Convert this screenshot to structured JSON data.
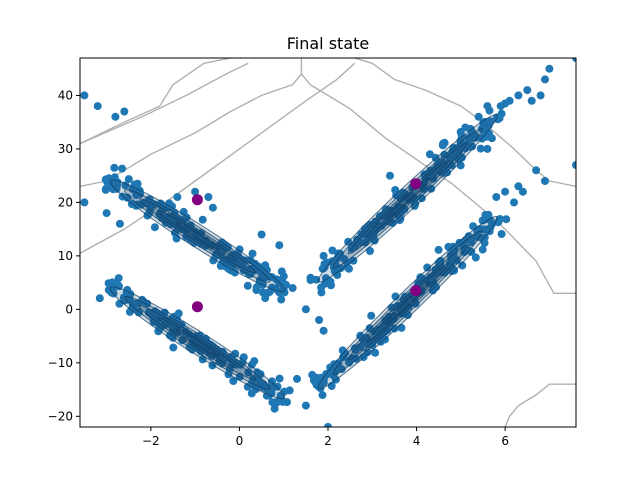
{
  "chart_data": {
    "type": "scatter",
    "title": "Final state",
    "xlabel": "",
    "ylabel": "",
    "xlim": [
      -3.6,
      7.6
    ],
    "ylim": [
      -22,
      47
    ],
    "xticks": [
      -2,
      0,
      2,
      4,
      6
    ],
    "yticks": [
      -20,
      -10,
      0,
      10,
      20,
      30,
      40
    ],
    "grid": false,
    "legend": "none",
    "colors": {
      "points": "#1f77b4",
      "density": "#1a4f7a",
      "centers": "#800080",
      "boundaries": "#b0b0b0"
    },
    "arms": [
      {
        "from": [
          -3.0,
          24.5
        ],
        "to": [
          1.1,
          3.0
        ]
      },
      {
        "from": [
          -3.0,
          4.5
        ],
        "to": [
          1.1,
          -17.0
        ]
      },
      {
        "from": [
          1.7,
          4.5
        ],
        "to": [
          5.9,
          37.0
        ]
      },
      {
        "from": [
          1.7,
          -15.5
        ],
        "to": [
          5.9,
          18.0
        ]
      }
    ],
    "outer_points": [
      [
        -3.5,
        40
      ],
      [
        -3.5,
        20
      ],
      [
        -3.2,
        38
      ],
      [
        -2.8,
        36
      ],
      [
        -2.6,
        37
      ],
      [
        -3.0,
        18
      ],
      [
        -2.7,
        16
      ],
      [
        1.2,
        4
      ],
      [
        1.5,
        0
      ],
      [
        1.8,
        -2
      ],
      [
        1.9,
        -4
      ],
      [
        1.3,
        -13
      ],
      [
        1.5,
        -18
      ],
      [
        2.0,
        -22
      ],
      [
        5.6,
        38
      ],
      [
        5.9,
        38
      ],
      [
        6.0,
        38.5
      ],
      [
        6.1,
        39
      ],
      [
        6.3,
        40
      ],
      [
        6.5,
        41
      ],
      [
        6.9,
        43
      ],
      [
        7.0,
        45
      ],
      [
        7.6,
        47
      ],
      [
        6.8,
        40
      ],
      [
        6.6,
        39
      ],
      [
        5.7,
        32
      ],
      [
        5.6,
        30
      ],
      [
        5.8,
        21
      ],
      [
        6.0,
        22
      ],
      [
        6.3,
        23
      ],
      [
        6.7,
        26
      ],
      [
        6.9,
        24
      ],
      [
        7.6,
        27
      ],
      [
        6.2,
        20
      ],
      [
        6.4,
        22
      ],
      [
        4.3,
        29
      ],
      [
        4.6,
        31
      ],
      [
        5.1,
        34
      ],
      [
        5.4,
        36
      ],
      [
        3.4,
        25
      ],
      [
        -1.0,
        22
      ],
      [
        -0.7,
        21
      ],
      [
        -0.6,
        19
      ],
      [
        -1.4,
        21
      ],
      [
        0.5,
        14
      ],
      [
        0.9,
        12
      ],
      [
        1.9,
        10
      ],
      [
        2.1,
        11
      ]
    ],
    "centers": [
      {
        "x": -0.95,
        "y": 20.5
      },
      {
        "x": -0.95,
        "y": 0.5
      },
      {
        "x": 3.98,
        "y": 23.5
      },
      {
        "x": 3.98,
        "y": 3.5
      }
    ],
    "boundaries": [
      [
        [
          -3.6,
          31
        ],
        [
          -2.2,
          36
        ],
        [
          -1.2,
          40
        ],
        [
          -0.3,
          44
        ],
        [
          0.2,
          46
        ]
      ],
      [
        [
          -3.6,
          10.5
        ],
        [
          -2.6,
          15
        ],
        [
          -1.5,
          21
        ],
        [
          -0.5,
          27
        ],
        [
          0.5,
          33
        ],
        [
          1.5,
          39
        ],
        [
          2.2,
          43
        ],
        [
          2.6,
          46
        ]
      ],
      [
        [
          -3.6,
          31
        ],
        [
          -2.6,
          35
        ],
        [
          -1.8,
          38
        ],
        [
          -1.5,
          42
        ],
        [
          -0.8,
          46
        ],
        [
          -0.2,
          47
        ]
      ],
      [
        [
          1.4,
          47
        ],
        [
          1.4,
          44
        ],
        [
          1.6,
          42
        ],
        [
          2.0,
          40
        ],
        [
          2.5,
          37.5
        ],
        [
          3.3,
          32
        ],
        [
          4.0,
          28
        ],
        [
          4.8,
          23.5
        ],
        [
          5.6,
          18
        ],
        [
          6.0,
          15
        ],
        [
          6.7,
          9
        ],
        [
          7.1,
          3
        ],
        [
          7.6,
          3
        ]
      ],
      [
        [
          1.4,
          44
        ],
        [
          1.2,
          42
        ],
        [
          0.5,
          40
        ],
        [
          -0.2,
          37
        ],
        [
          -1.0,
          33
        ],
        [
          -2.0,
          29
        ],
        [
          -3.0,
          24
        ],
        [
          -3.6,
          23
        ]
      ],
      [
        [
          2.6,
          47
        ],
        [
          3.0,
          46
        ],
        [
          3.5,
          43
        ],
        [
          4.2,
          41
        ],
        [
          5.0,
          38
        ],
        [
          5.5,
          35
        ],
        [
          6.2,
          30
        ],
        [
          6.7,
          26
        ],
        [
          7.0,
          24
        ],
        [
          7.6,
          23
        ]
      ],
      [
        [
          7.6,
          -14
        ],
        [
          7.0,
          -14
        ],
        [
          6.7,
          -16
        ],
        [
          6.3,
          -18
        ],
        [
          6.1,
          -20
        ],
        [
          6.0,
          -22
        ]
      ]
    ]
  }
}
